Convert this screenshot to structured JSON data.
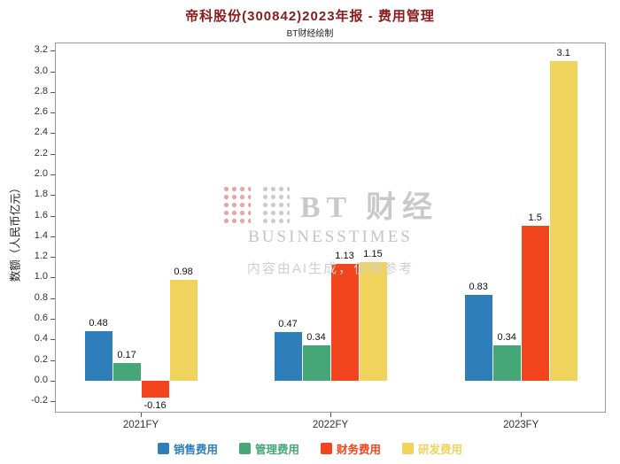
{
  "header": {
    "title": "帝科股份(300842)2023年报 - 费用管理",
    "subtitle": "BT财经绘制"
  },
  "watermark": {
    "brand": "BT 财经",
    "brand_sub": "BUSINESSTIMES",
    "disclaimer": "内容由AI生成，仅供参考"
  },
  "chart_data": {
    "type": "bar",
    "title": "帝科股份(300842)2023年报 - 费用管理",
    "subtitle": "BT财经绘制",
    "categories": [
      "2021FY",
      "2022FY",
      "2023FY"
    ],
    "series": [
      {
        "name": "销售费用",
        "color": "#2e7ebc",
        "values": [
          0.48,
          0.47,
          0.83
        ]
      },
      {
        "name": "管理费用",
        "color": "#45a776",
        "values": [
          0.17,
          0.34,
          0.34
        ]
      },
      {
        "name": "财务费用",
        "color": "#f2441d",
        "values": [
          -0.16,
          1.13,
          1.5
        ]
      },
      {
        "name": "研发费用",
        "color": "#efd35d",
        "values": [
          0.98,
          1.15,
          3.1
        ]
      }
    ],
    "xlabel": "",
    "ylabel": "数额（人民币亿元）",
    "ylim": [
      -0.31,
      3.28
    ],
    "yticks": [
      -0.2,
      0,
      0.2,
      0.4,
      0.6,
      0.8,
      1,
      1.2,
      1.4,
      1.6,
      1.8,
      2,
      2.2,
      2.4,
      2.6,
      2.8,
      3,
      3.2
    ],
    "grid": false,
    "legend_position": "bottom",
    "value_labels": true
  }
}
